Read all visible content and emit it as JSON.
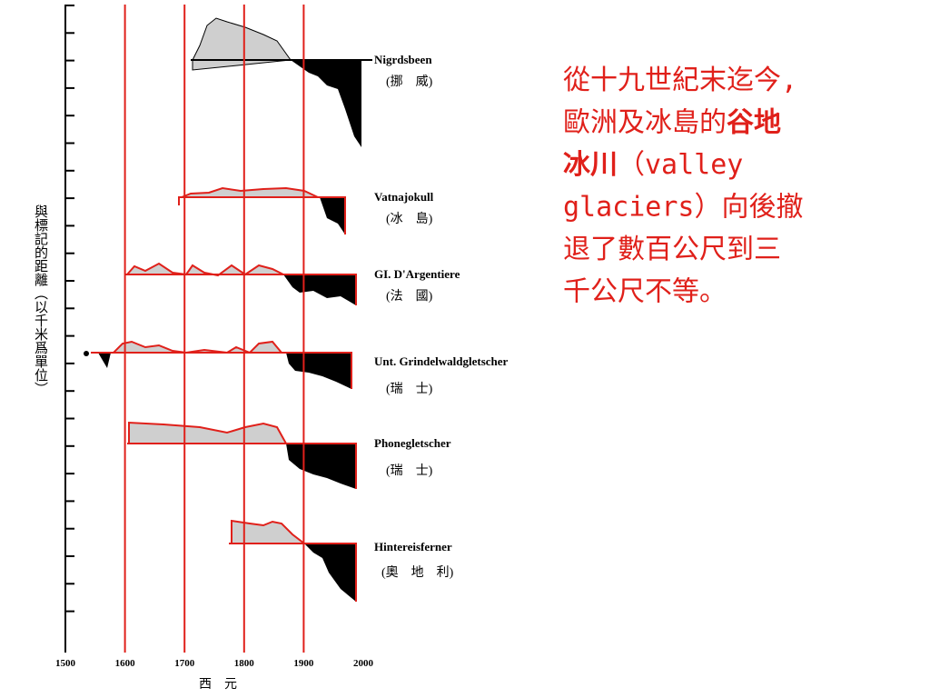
{
  "figure": {
    "xticks": [
      1500,
      1600,
      1700,
      1800,
      1900,
      2000
    ],
    "xlim": [
      1500,
      2000
    ],
    "x_label": "西　元",
    "y_label": "與標記的距離（以千米爲單位）",
    "glaciers": [
      {
        "name": "Nigrdsbeen",
        "country": "(挪　威)"
      },
      {
        "name": "Vatnajokull",
        "country": "(冰　島)"
      },
      {
        "name": "GI. D'Argentiere",
        "country": "(法　國)"
      },
      {
        "name": "Unt. Grindelwaldgletscher",
        "country": "(瑞　士)"
      },
      {
        "name": "Phonegletscher",
        "country": "(瑞　士)"
      },
      {
        "name": "Hintereisferner",
        "country": "(奧　地　利)"
      }
    ],
    "note": [
      [
        {
          "text": "從十九世紀末迄今,",
          "bold": false
        }
      ],
      [
        {
          "text": "歐洲及冰島的",
          "bold": false
        },
        {
          "text": "谷地",
          "bold": true
        }
      ],
      [
        {
          "text": "冰川",
          "bold": true
        },
        {
          "text": "（valley",
          "bold": false
        }
      ],
      [
        {
          "text": "glaciers）向後撤",
          "bold": false
        }
      ],
      [
        {
          "text": "退了數百公尺到三",
          "bold": false
        }
      ],
      [
        {
          "text": "千公尺不等。",
          "bold": false
        }
      ]
    ]
  }
}
